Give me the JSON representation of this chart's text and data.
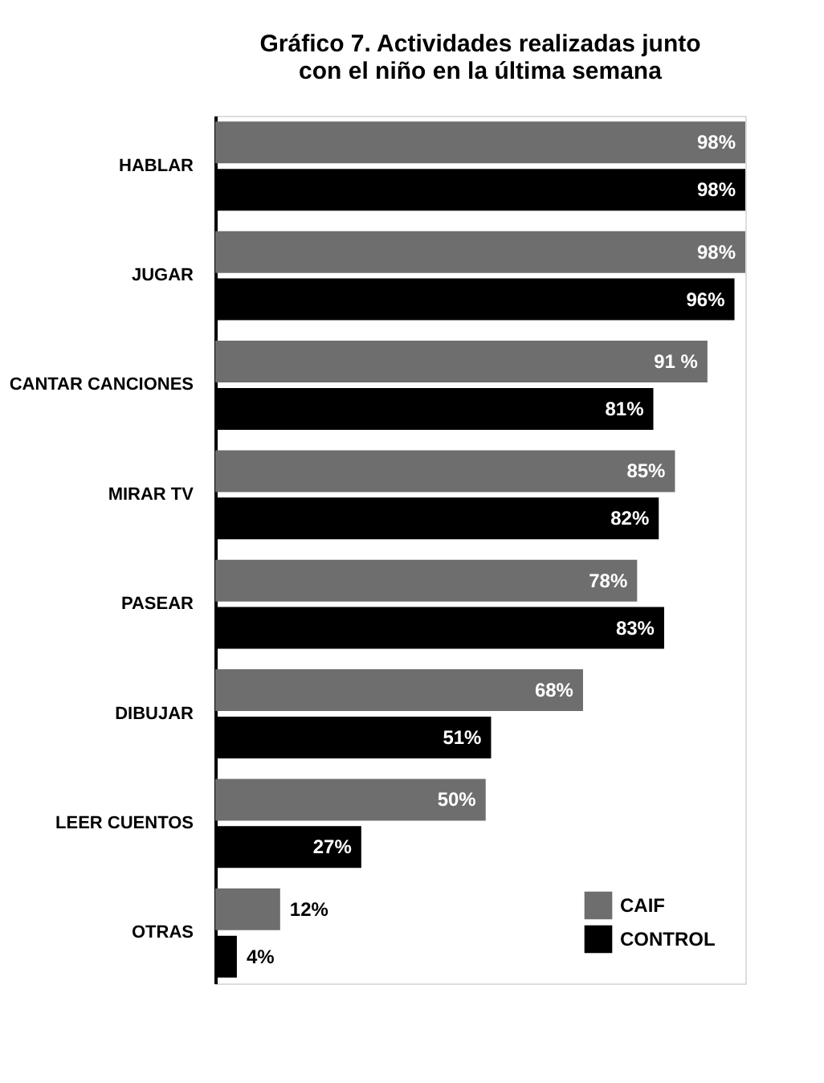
{
  "chart_data": {
    "type": "bar",
    "orientation": "horizontal",
    "title": "Gráfico 7. Actividades realizadas junto\ncon el niño en la última semana",
    "categories": [
      "HABLAR",
      "JUGAR",
      "CANTAR CANCIONES",
      "MIRAR TV",
      "PASEAR",
      "DIBUJAR",
      "LEER CUENTOS",
      "OTRAS"
    ],
    "series": [
      {
        "name": "CAIF",
        "color": "#6e6e6e",
        "values": [
          98,
          98,
          91,
          85,
          78,
          68,
          50,
          12
        ],
        "value_labels": [
          "98%",
          "98%",
          "91 %",
          "85%",
          "78%",
          "68%",
          "50%",
          "12%"
        ]
      },
      {
        "name": "CONTROL",
        "color": "#000000",
        "values": [
          98,
          96,
          81,
          82,
          83,
          51,
          27,
          4
        ],
        "value_labels": [
          "98%",
          "96%",
          "81%",
          "82%",
          "83%",
          "51%",
          "27%",
          "4%"
        ]
      }
    ],
    "legend": "bottom right",
    "grid": false
  }
}
